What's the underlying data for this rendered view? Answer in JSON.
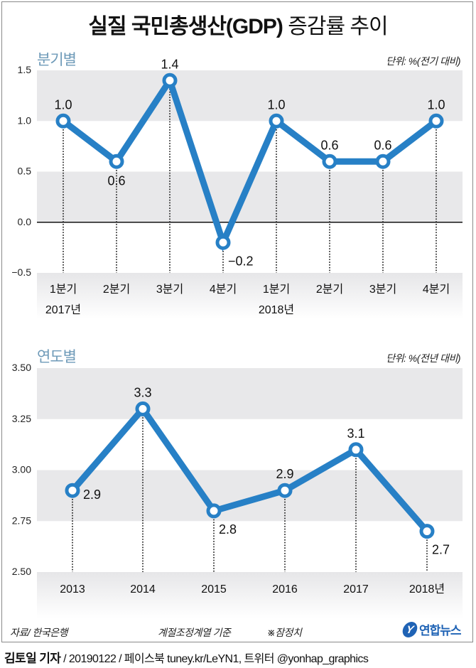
{
  "title": {
    "bold": "실질 국민총생산(GDP)",
    "normal": " 증감률 추이"
  },
  "colors": {
    "line": "#2780c6",
    "band": "#e8e8ea",
    "section_label": "#6e9ab8",
    "logo": "#1f63b5"
  },
  "chart_data": [
    {
      "type": "line",
      "section_label": "분기별",
      "unit": "단위: %(전기 대비)",
      "categories": [
        "1분기",
        "2분기",
        "3분기",
        "4분기",
        "1분기",
        "2분기",
        "3분기",
        "4분기"
      ],
      "year_labels": [
        {
          "index": 0,
          "text": "2017년"
        },
        {
          "index": 4,
          "text": "2018년"
        }
      ],
      "values": [
        1.0,
        0.6,
        1.4,
        -0.2,
        1.0,
        0.6,
        0.6,
        1.0
      ],
      "value_labels": [
        "1.0",
        "0.6",
        "1.4",
        "−0.2",
        "1.0",
        "0.6",
        "0.6",
        "1.0"
      ],
      "label_positions": [
        "above",
        "below",
        "above",
        "right-below",
        "above",
        "above",
        "above",
        "above"
      ],
      "yticks": [
        1.5,
        1.0,
        0.5,
        0.0,
        -0.5
      ],
      "ytick_labels": [
        "1.5",
        "1.0",
        "0.5",
        "0.0",
        "−0.5"
      ],
      "ylim": [
        -0.5,
        1.5
      ],
      "zero_line": 0.0,
      "xlabel": "",
      "ylabel": ""
    },
    {
      "type": "line",
      "section_label": "연도별",
      "unit": "단위: %(전년 대비)",
      "categories": [
        "2013",
        "2014",
        "2015",
        "2016",
        "2017",
        "2018년"
      ],
      "values": [
        2.9,
        3.3,
        2.8,
        2.9,
        3.1,
        2.7
      ],
      "value_labels": [
        "2.9",
        "3.3",
        "2.8",
        "2.9",
        "3.1",
        "2.7"
      ],
      "label_positions": [
        "right",
        "above",
        "right-below",
        "above",
        "above",
        "right-below"
      ],
      "yticks": [
        3.5,
        3.25,
        3.0,
        2.75,
        2.5
      ],
      "ytick_labels": [
        "3.50",
        "3.25",
        "3.00",
        "2.75",
        "2.50"
      ],
      "ylim": [
        2.5,
        3.5
      ],
      "xlabel": "",
      "ylabel": ""
    }
  ],
  "footer": {
    "source": "자료/ 한국은행",
    "basis": "계절조정계열 기준",
    "note": "※잠정치",
    "logo_text": "연합뉴스",
    "logo_mark": "Y"
  },
  "credit": {
    "name": "김토일 기자",
    "rest": " / 20190122 / 페이스북 tuney.kr/LeYN1, 트위터 @yonhap_graphics"
  }
}
